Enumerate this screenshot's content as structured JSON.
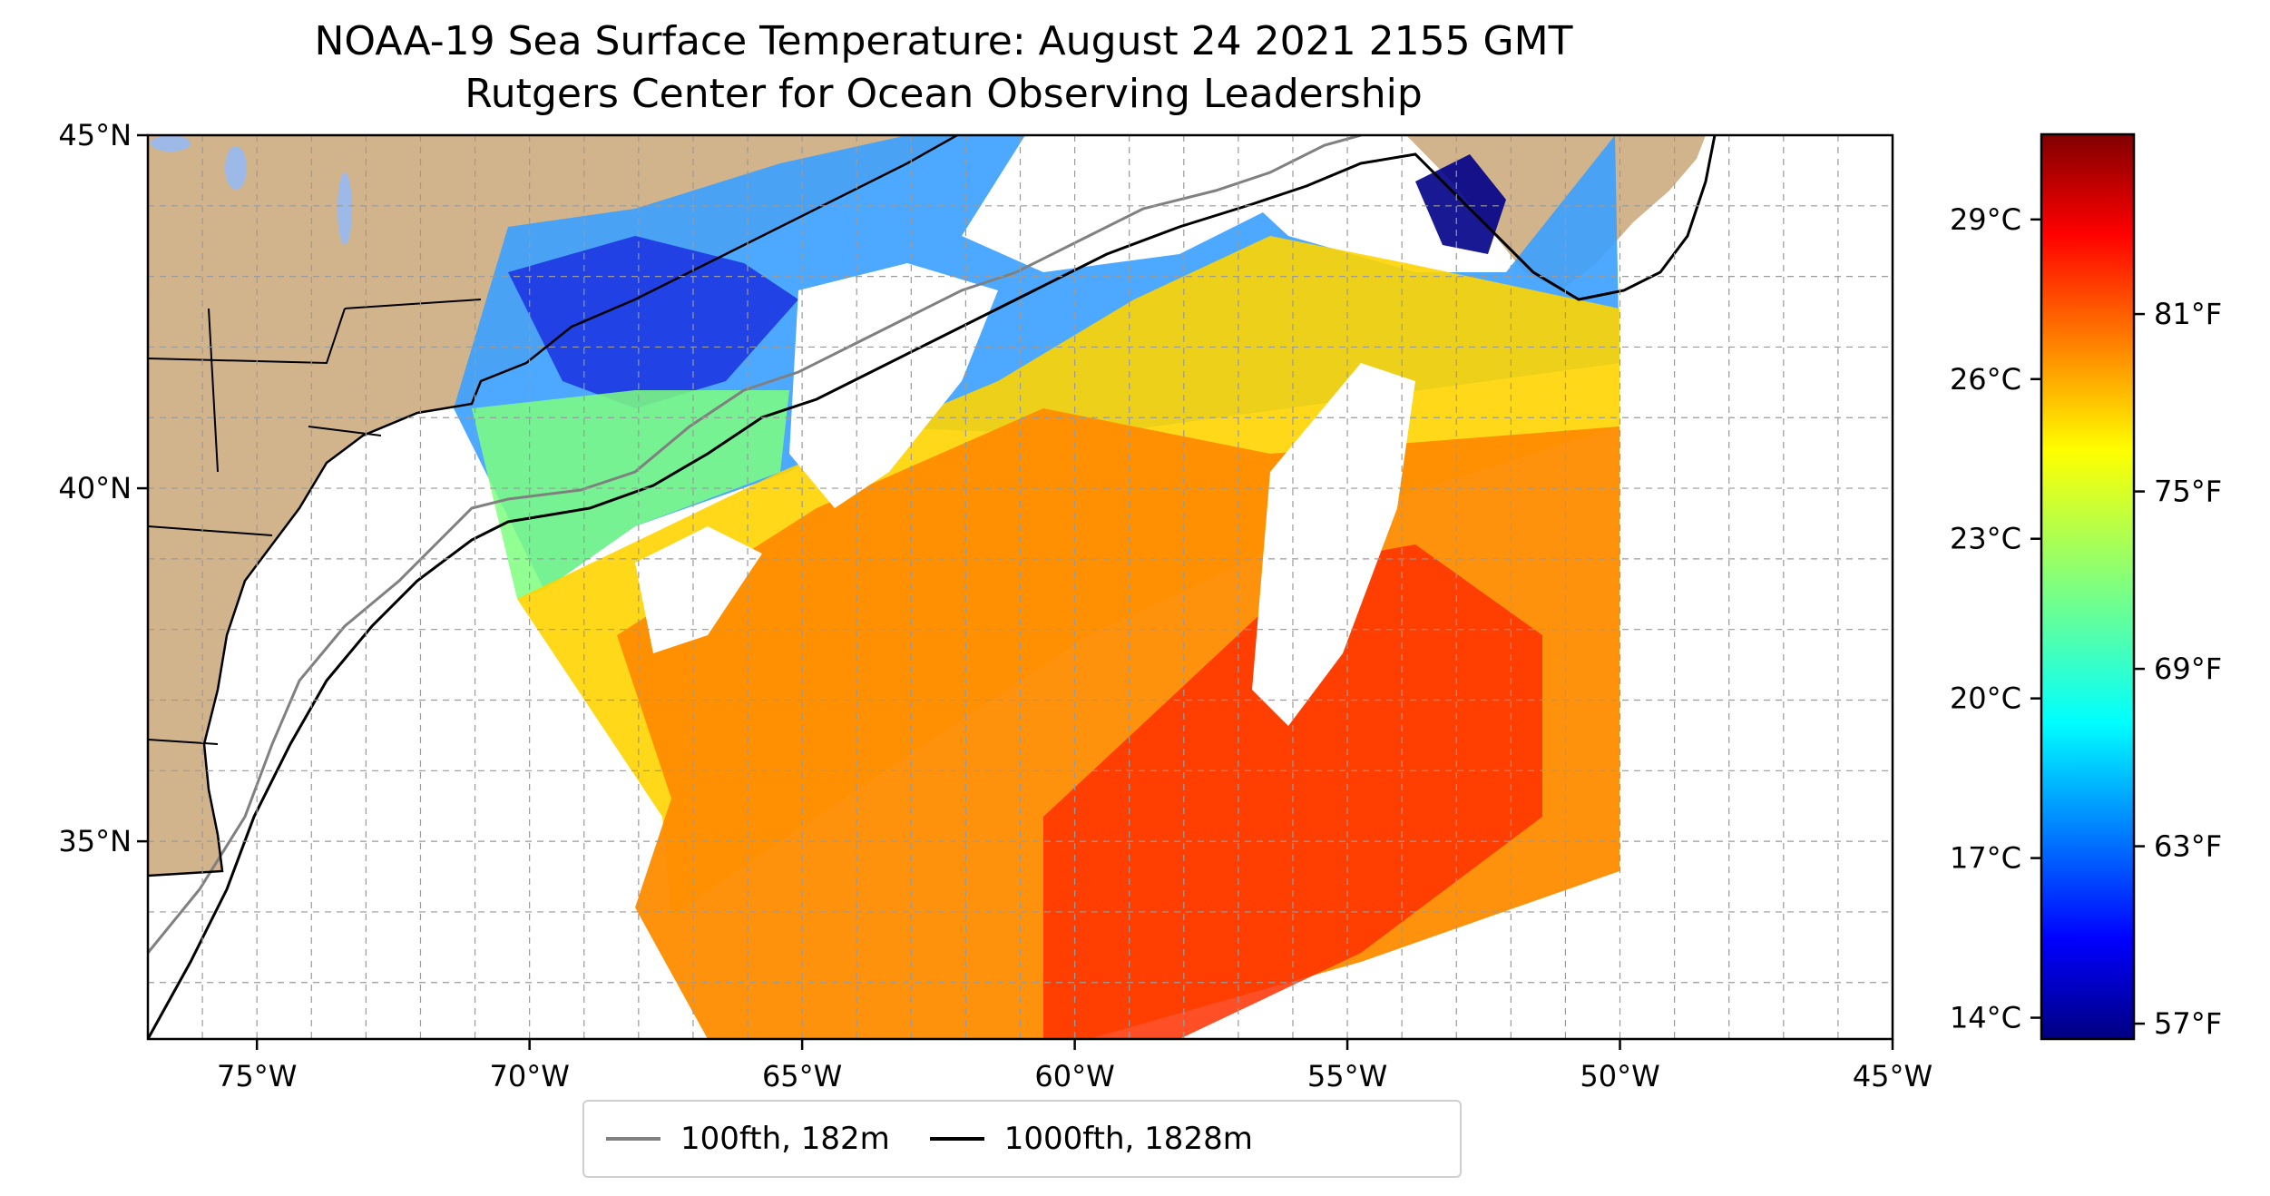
{
  "title": {
    "line1": "NOAA-19 Sea Surface Temperature: August 24 2021 2155 GMT",
    "line2": "Rutgers Center for Ocean Observing Leadership"
  },
  "map": {
    "lon_range": [
      -77,
      -45
    ],
    "lat_range": [
      32.2,
      45
    ],
    "lon_ticks": [
      "75°W",
      "70°W",
      "65°W",
      "60°W",
      "55°W",
      "50°W",
      "45°W"
    ],
    "lat_ticks": [
      "45°N",
      "40°N",
      "35°N"
    ],
    "gridlines": true,
    "land_color": "#D2B48C",
    "water_body_color": "#9DB9E8"
  },
  "colorbar": {
    "colormap": "jet",
    "celsius_ticks": [
      "29°C",
      "26°C",
      "23°C",
      "20°C",
      "17°C",
      "14°C"
    ],
    "fahrenheit_ticks": [
      "81°F",
      "75°F",
      "69°F",
      "63°F",
      "57°F"
    ],
    "range_c": [
      13.6,
      30.6
    ]
  },
  "legend": {
    "entries": [
      {
        "label": "100fth, 182m",
        "color": "#808080"
      },
      {
        "label": "1000fth, 1828m",
        "color": "#000000"
      }
    ]
  }
}
